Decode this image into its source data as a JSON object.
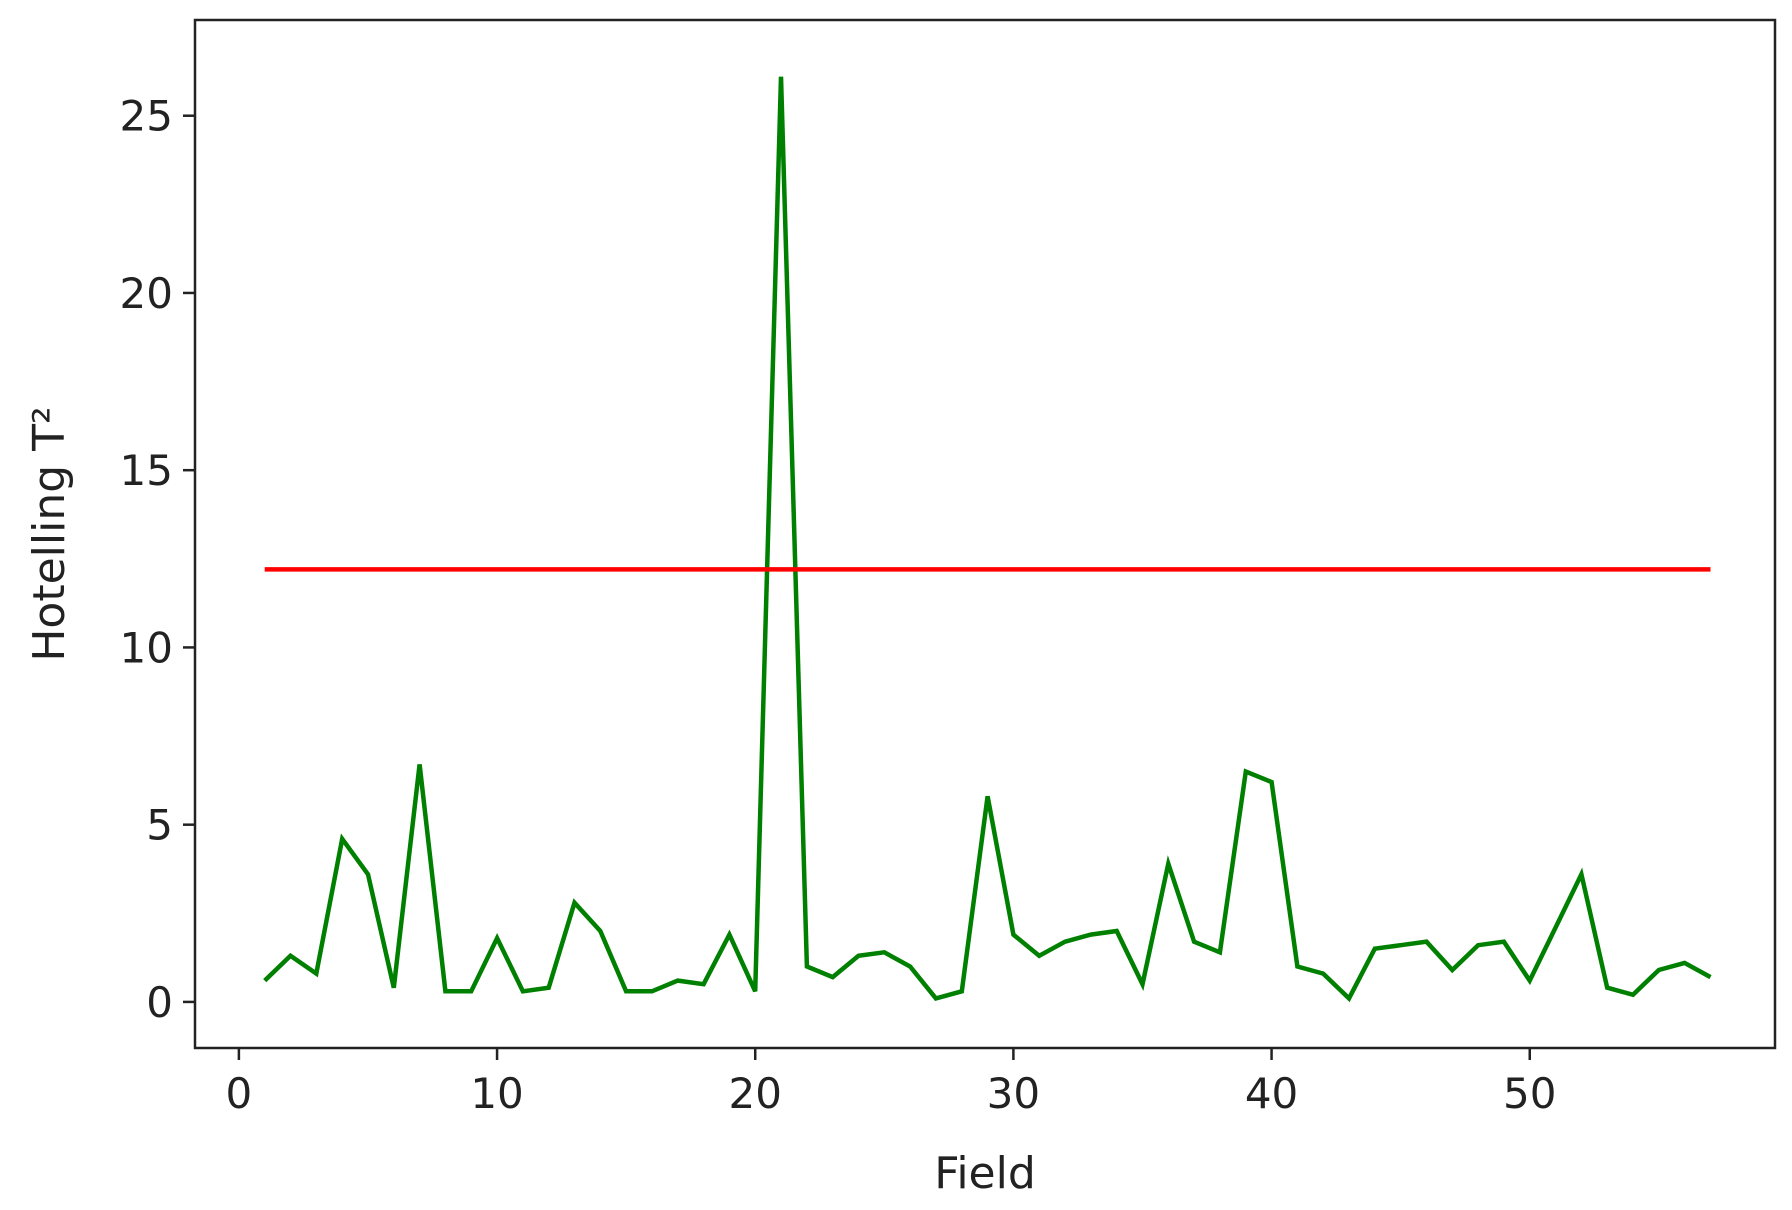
{
  "chart_data": {
    "type": "line",
    "xlabel": "Field",
    "ylabel": "Hotelling T²",
    "xlim": [
      -1.7,
      59.5
    ],
    "ylim": [
      -1.3,
      27.7
    ],
    "x_ticks": [
      0,
      10,
      20,
      30,
      40,
      50
    ],
    "y_ticks": [
      0,
      5,
      10,
      15,
      20,
      25
    ],
    "grid": false,
    "colors": {
      "series": "#008000",
      "threshold": "#ff0000",
      "axes": "#222222"
    },
    "series": [
      {
        "x": [
          1,
          2,
          3,
          4,
          5,
          6,
          7,
          8,
          9,
          10,
          11,
          12,
          13,
          14,
          15,
          16,
          17,
          18,
          19,
          20,
          21,
          22,
          23,
          24,
          25,
          26,
          27,
          28,
          29,
          30,
          31,
          32,
          33,
          34,
          35,
          36,
          37,
          38,
          39,
          40,
          41,
          42,
          43,
          44,
          45,
          46,
          47,
          48,
          49,
          50,
          51,
          52,
          53,
          54,
          55,
          56,
          57
        ],
        "values": [
          0.6,
          1.3,
          0.8,
          4.6,
          3.6,
          0.4,
          6.7,
          0.3,
          0.3,
          1.8,
          0.3,
          0.4,
          2.8,
          2.0,
          0.3,
          0.3,
          0.6,
          0.5,
          1.9,
          0.3,
          26.1,
          1.0,
          0.7,
          1.3,
          1.4,
          1.0,
          0.1,
          0.3,
          5.8,
          1.9,
          1.3,
          1.7,
          1.9,
          2.0,
          0.5,
          3.9,
          1.7,
          1.4,
          6.5,
          6.2,
          1.0,
          0.8,
          0.1,
          1.5,
          1.6,
          1.7,
          0.9,
          1.6,
          1.7,
          0.6,
          2.1,
          3.6,
          0.4,
          0.2,
          0.9,
          1.1,
          0.7
        ]
      },
      {
        "x": [
          1,
          57
        ],
        "values": [
          12.2,
          12.2
        ]
      }
    ]
  }
}
